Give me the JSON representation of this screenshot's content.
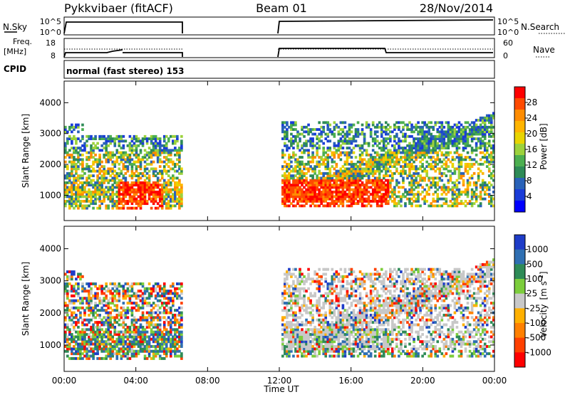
{
  "header": {
    "title": "Pykkvibaer (fitACF)",
    "beam": "Beam 01",
    "date": "28/Nov/2014"
  },
  "panels": {
    "nsky": {
      "label": "N.Sky",
      "ticks": [
        "10^5",
        "10^0"
      ],
      "right_label": "N.Search",
      "right_ticks": [
        "10^5",
        "10^0"
      ]
    },
    "freq": {
      "label1": "Freq.",
      "label2": "[MHz]",
      "ticks": [
        "18",
        "8"
      ],
      "right_label": "Nave",
      "right_ticks": [
        "60",
        "0"
      ]
    },
    "cpid": {
      "label": "CPID",
      "value": "normal (fast stereo) 153"
    }
  },
  "chart_data": [
    {
      "type": "heatmap",
      "name": "power",
      "ylabel": "Slant Range [km]",
      "yticks": [
        1000,
        2000,
        3000,
        4000
      ],
      "ylim": [
        180,
        4700
      ],
      "colorbar": {
        "label": "Power [dB]",
        "ticks": [
          "28",
          "24",
          "20",
          "16",
          "12",
          "8",
          "4"
        ],
        "colors": [
          "#ff0000",
          "#ff4a00",
          "#ff8c00",
          "#ffb400",
          "#e8d400",
          "#9cd23c",
          "#4caf50",
          "#2e8b57",
          "#2962b8",
          "#1a3cd8",
          "#0000ff"
        ]
      },
      "data_gap_hours": [
        6.5,
        12.0
      ]
    },
    {
      "type": "heatmap",
      "name": "velocity",
      "ylabel": "Slant Range [km]",
      "yticks": [
        1000,
        2000,
        3000,
        4000
      ],
      "ylim": [
        180,
        4700
      ],
      "colorbar": {
        "label": "Velocity",
        "unit": "[m s",
        "unit_exp": "-1",
        "unit_close": "]",
        "ticks": [
          "1000",
          "500",
          "100",
          "25",
          "-25",
          "-100",
          "-500",
          "-1000"
        ],
        "colors": [
          "#1e3cc8",
          "#2f6fb2",
          "#2e8b57",
          "#7ccd3c",
          "#c8c8c8",
          "#ffb000",
          "#ff8000",
          "#ff4000",
          "#ff0000"
        ]
      },
      "data_gap_hours": [
        6.5,
        12.0
      ]
    }
  ],
  "xaxis": {
    "label": "Time UT",
    "ticks": [
      "00:00",
      "04:00",
      "08:00",
      "12:00",
      "16:00",
      "20:00",
      "00:00"
    ],
    "range_hours": [
      0,
      24
    ]
  }
}
